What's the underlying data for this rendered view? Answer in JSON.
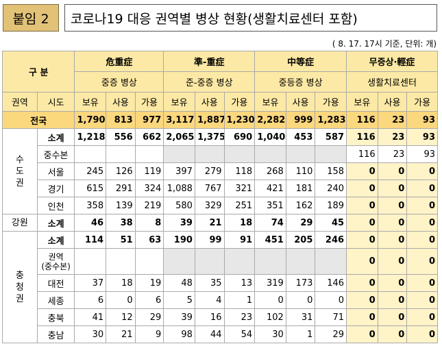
{
  "badge": "붙임 2",
  "title": "코로나19 대응 권역별 병상 현황(생활치료센터 포함)",
  "note": "( 8. 17. 17시 기준, 단위: 개)",
  "header": {
    "gubun": "구 분",
    "groups": [
      {
        "name": "危重症",
        "sub": "중증 병상"
      },
      {
        "name": "準-重症",
        "sub": "준-중증 병상"
      },
      {
        "name": "中等症",
        "sub": "중등증 병상"
      },
      {
        "name": "무증상·輕症",
        "sub": "생활치료센터"
      }
    ],
    "region_col": "권역",
    "city_col": "시도",
    "metrics": [
      "보유",
      "사용",
      "가용"
    ]
  },
  "total": {
    "label": "전국",
    "values": [
      "1,790",
      "813",
      "977",
      "3,117",
      "1,887",
      "1,230",
      "2,282",
      "999",
      "1,283",
      "116",
      "23",
      "93"
    ]
  },
  "regions": [
    {
      "name": [
        "수",
        "도",
        "권"
      ],
      "rows": [
        {
          "label": "소계",
          "values": [
            "1,218",
            "556",
            "662",
            "2,065",
            "1,375",
            "690",
            "1,040",
            "453",
            "587",
            "116",
            "23",
            "93"
          ]
        },
        {
          "label": "중수본",
          "values": [
            "",
            "",
            "",
            "",
            "",
            "",
            "",
            "",
            "",
            "116",
            "23",
            "93"
          ]
        },
        {
          "label": "서울",
          "values": [
            "245",
            "126",
            "119",
            "397",
            "279",
            "118",
            "268",
            "110",
            "158",
            "0",
            "0",
            "0"
          ]
        },
        {
          "label": "경기",
          "values": [
            "615",
            "291",
            "324",
            "1,088",
            "767",
            "321",
            "421",
            "181",
            "240",
            "0",
            "0",
            "0"
          ]
        },
        {
          "label": "인천",
          "values": [
            "358",
            "139",
            "219",
            "580",
            "329",
            "251",
            "351",
            "162",
            "189",
            "0",
            "0",
            "0"
          ]
        }
      ]
    },
    {
      "name": [
        "강원"
      ],
      "rows": [
        {
          "label": "소계",
          "values": [
            "46",
            "38",
            "8",
            "39",
            "21",
            "18",
            "74",
            "29",
            "45",
            "0",
            "0",
            "0"
          ]
        }
      ]
    },
    {
      "name": [
        "충",
        "청",
        "권"
      ],
      "rows": [
        {
          "label": "소계",
          "values": [
            "114",
            "51",
            "63",
            "190",
            "99",
            "91",
            "451",
            "205",
            "246",
            "0",
            "0",
            "0"
          ]
        },
        {
          "label": "권역(중수본)",
          "label_lines": [
            "권역",
            "(중수본)"
          ],
          "values": [
            "",
            "",
            "",
            "",
            "",
            "",
            "",
            "",
            "",
            "0",
            "0",
            "0"
          ]
        },
        {
          "label": "대전",
          "values": [
            "37",
            "18",
            "19",
            "48",
            "35",
            "13",
            "319",
            "173",
            "146",
            "0",
            "0",
            "0"
          ]
        },
        {
          "label": "세종",
          "values": [
            "6",
            "0",
            "6",
            "5",
            "4",
            "1",
            "0",
            "0",
            "0",
            "0",
            "0",
            "0"
          ]
        },
        {
          "label": "충북",
          "values": [
            "41",
            "12",
            "29",
            "39",
            "16",
            "23",
            "102",
            "31",
            "71",
            "0",
            "0",
            "0"
          ]
        },
        {
          "label": "충남",
          "values": [
            "30",
            "21",
            "9",
            "98",
            "44",
            "54",
            "30",
            "1",
            "29",
            "0",
            "0",
            "0"
          ]
        }
      ]
    }
  ]
}
